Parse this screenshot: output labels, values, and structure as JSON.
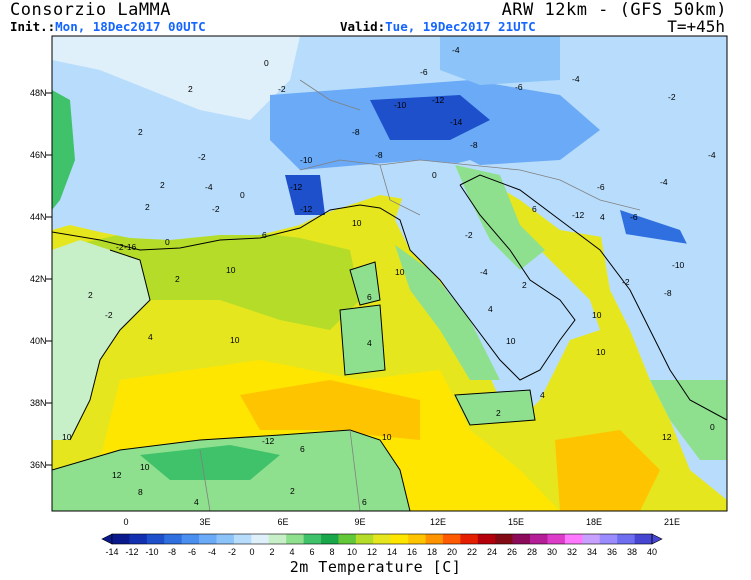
{
  "header": {
    "title": "Consorzio LaMMA",
    "model": "ARW 12km - (GFS 50km)",
    "init_key": "Init.:",
    "init_val": "Mon, 18Dec2017 00UTC",
    "valid_key": "Valid:",
    "valid_val": "Tue, 19Dec2017 21UTC",
    "timestep": "T=+45h"
  },
  "map": {
    "lat_labels": [
      "48N",
      "46N",
      "44N",
      "42N",
      "40N",
      "38N",
      "36N"
    ],
    "lon_labels": [
      "0",
      "3E",
      "6E",
      "9E",
      "12E",
      "15E",
      "18E",
      "21E"
    ],
    "isotherm_labels": [
      "0",
      "2",
      "4",
      "6",
      "8",
      "10",
      "12",
      "-2",
      "-4",
      "-6",
      "-8",
      "-10",
      "-12",
      "-14",
      "-16"
    ]
  },
  "colorbar": {
    "ticks": [
      "-14",
      "-12",
      "-10",
      "-8",
      "-6",
      "-4",
      "-2",
      "0",
      "2",
      "4",
      "6",
      "8",
      "10",
      "12",
      "14",
      "16",
      "18",
      "20",
      "22",
      "24",
      "26",
      "28",
      "30",
      "32",
      "34",
      "36",
      "38",
      "40"
    ],
    "colors": [
      "#0a1a8c",
      "#1230b0",
      "#1e50cc",
      "#2f6fe0",
      "#4a8ff0",
      "#6aaaf6",
      "#8cc4fa",
      "#b8ddfc",
      "#dff0fa",
      "#c8f0c8",
      "#8ee08e",
      "#3fc26a",
      "#1aa64a",
      "#62c83a",
      "#b4dc28",
      "#e6e61e",
      "#ffe600",
      "#ffc400",
      "#ff9400",
      "#ff5a00",
      "#e61e00",
      "#b4000a",
      "#820a14",
      "#8c0a5a",
      "#b41e96",
      "#dc3cc8",
      "#ff78ff",
      "#c8a0ff",
      "#9a8cff",
      "#6e6ef0",
      "#4646d2"
    ],
    "label": "2m Temperature [C]"
  }
}
